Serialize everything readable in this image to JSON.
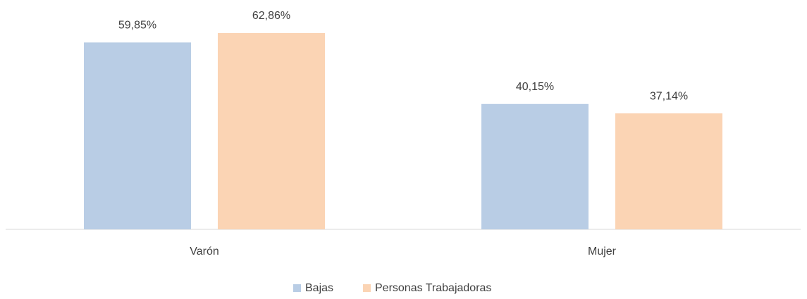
{
  "chart_data": {
    "type": "bar",
    "categories": [
      "Varón",
      "Mujer"
    ],
    "series": [
      {
        "name": "Bajas",
        "color": "#b9cde5",
        "values": [
          59.85,
          40.15
        ],
        "value_labels": [
          "59,85%",
          "40,15%"
        ]
      },
      {
        "name": "Personas Trabajadoras",
        "color": "#fbd4b4",
        "values": [
          62.86,
          37.14
        ],
        "value_labels": [
          "62,86%",
          "37,14%"
        ]
      }
    ]
  }
}
